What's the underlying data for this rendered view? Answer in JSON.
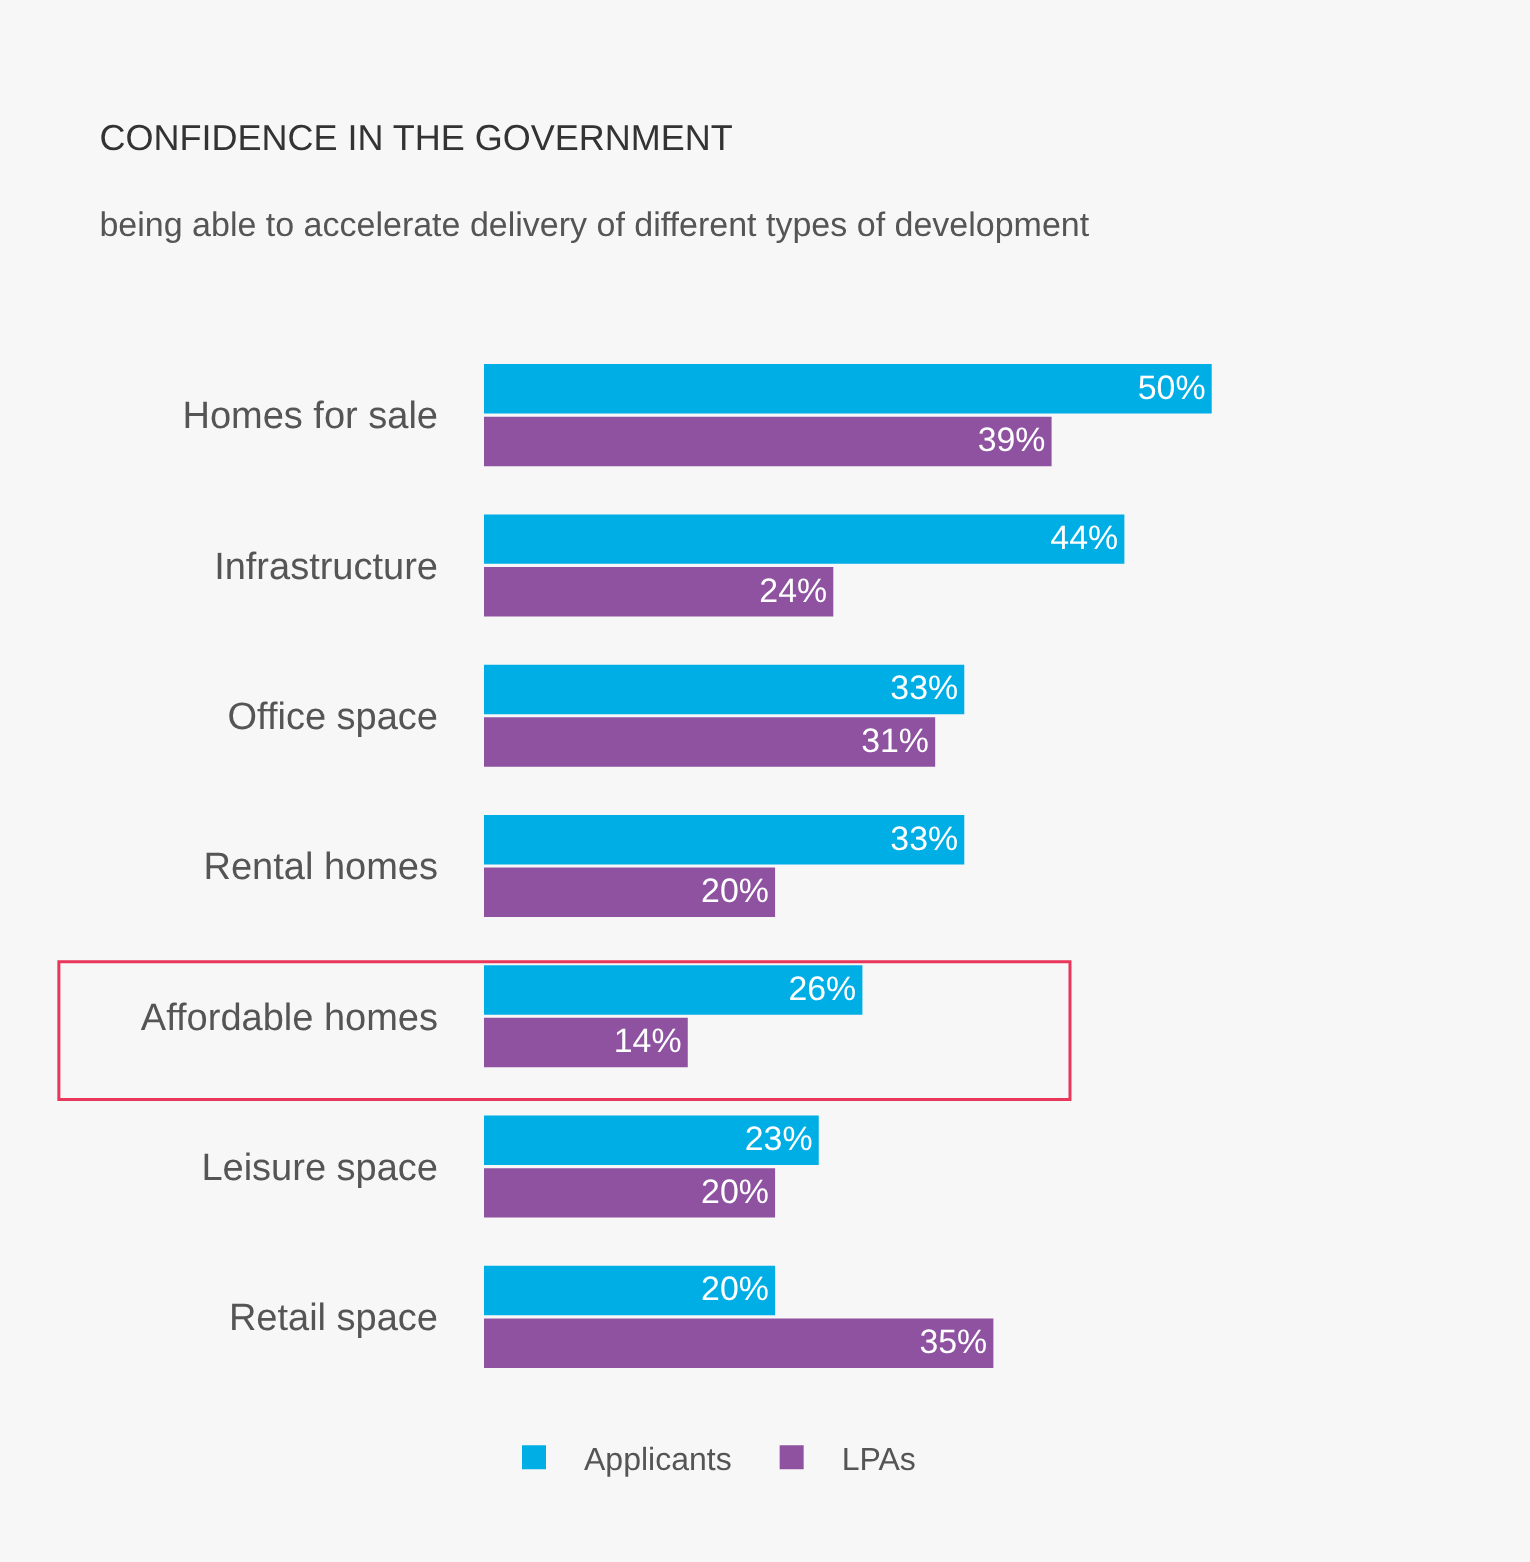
{
  "chart_data": {
    "type": "bar",
    "orientation": "horizontal",
    "title": "CONFIDENCE IN THE GOVERNMENT",
    "subtitle": "being able to accelerate delivery of different types of development",
    "categories": [
      "Homes for sale",
      "Infrastructure",
      "Office space",
      "Rental homes",
      "Affordable homes",
      "Leisure space",
      "Retail space"
    ],
    "series": [
      {
        "name": "Applicants",
        "color": "#00aee6",
        "values": [
          50,
          44,
          33,
          33,
          26,
          23,
          20
        ],
        "value_labels": [
          "50%",
          "44%",
          "33%",
          "33%",
          "26%",
          "23%",
          "20%"
        ]
      },
      {
        "name": "LPAs",
        "color": "#8e52a1",
        "values": [
          39,
          24,
          31,
          20,
          14,
          20,
          35
        ],
        "value_labels": [
          "39%",
          "24%",
          "31%",
          "20%",
          "14%",
          "20%",
          "35%"
        ]
      }
    ],
    "legend": "bottom",
    "grid": false,
    "tick_labels": "y"
  }
}
